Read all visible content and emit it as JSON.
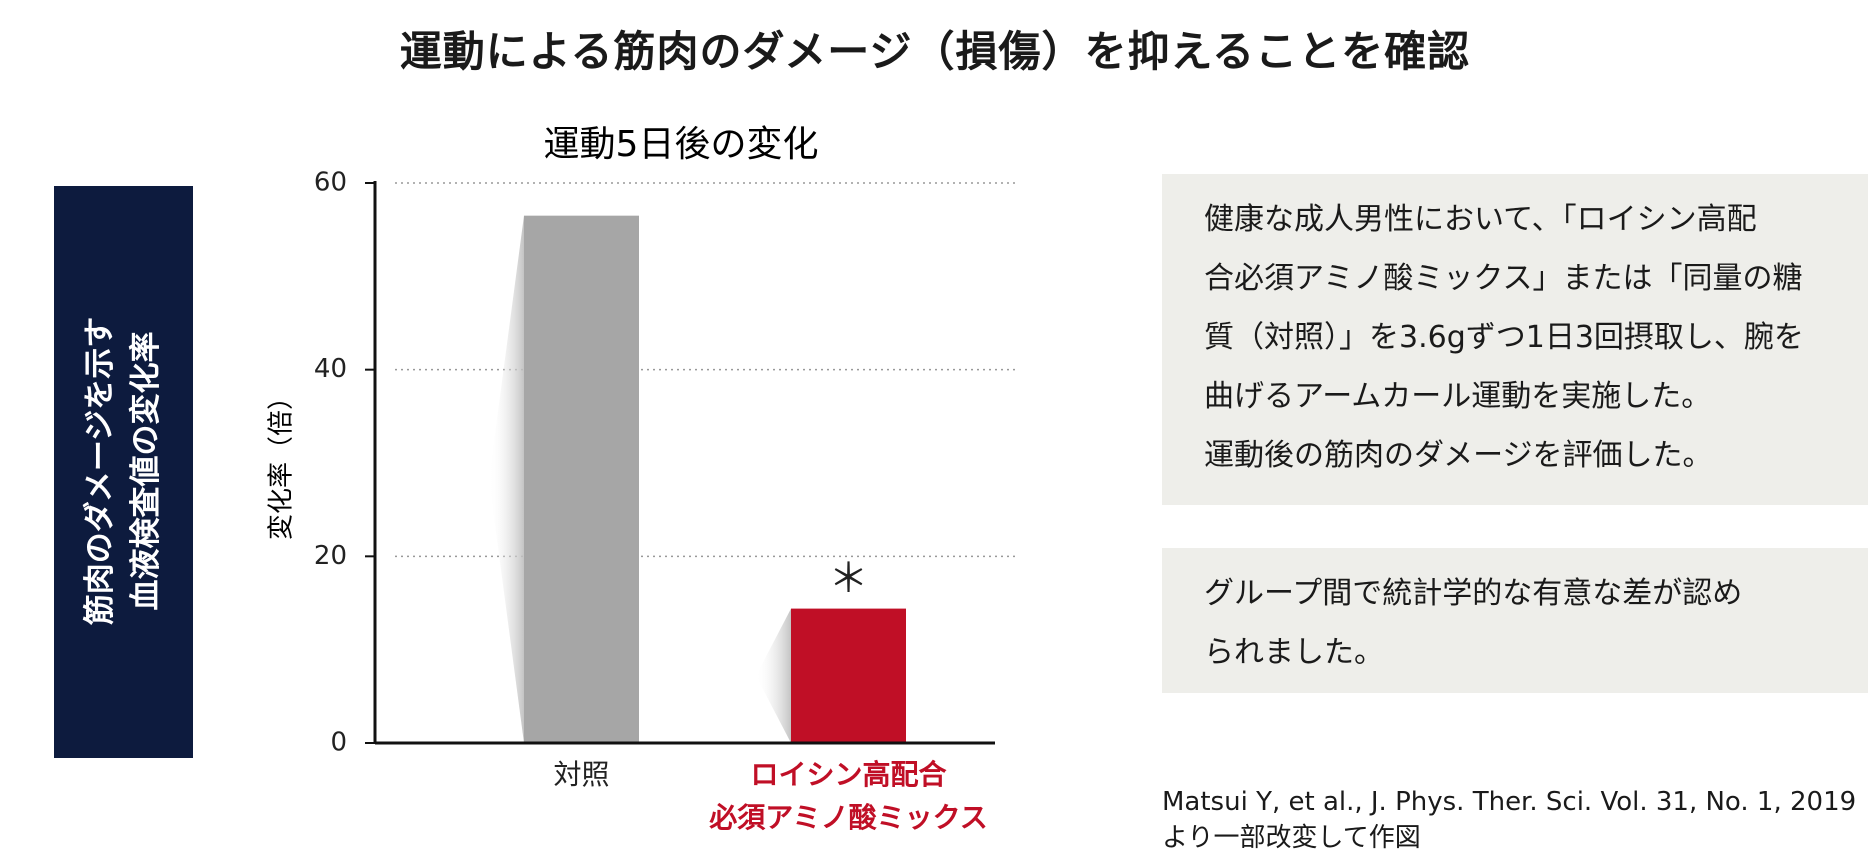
{
  "title": "運動による筋肉のダメージ（損傷）を抑えることを確認",
  "sidebar_label": [
    "筋肉のダメージを示す",
    "血液検査値の変化率"
  ],
  "chart_data": {
    "type": "bar",
    "title": "運動5日後の変化",
    "y_label": "変化率（倍）",
    "categories": [
      "対照",
      "ロイシン高配合\n必須アミノ酸ミックス"
    ],
    "values": [
      56.5,
      14.4
    ],
    "colors": [
      "#a6a6a6",
      "#c00f26"
    ],
    "category_label_colors": [
      "#222222",
      "#c00f26"
    ],
    "annotation": "＊",
    "ylim": [
      0,
      60
    ],
    "yticks": [
      0,
      20,
      40,
      60
    ],
    "grid": true
  },
  "notes": [
    [
      "健康な成人男性において、「ロイシン高配",
      "合必須アミノ酸ミックス」または「同量の糖",
      "質（対照）」を3.6gずつ1日3回摂取し、腕を",
      "曲げるアームカール運動を実施した。",
      "運動後の筋肉のダメージを評価した。"
    ],
    [
      "グループ間で統計学的な有意な差が認め",
      "られました。"
    ]
  ],
  "citation": [
    "Matsui Y, et al., J. Phys. Ther. Sci. Vol. 31, No. 1, 2019",
    "より一部改変して作図"
  ]
}
